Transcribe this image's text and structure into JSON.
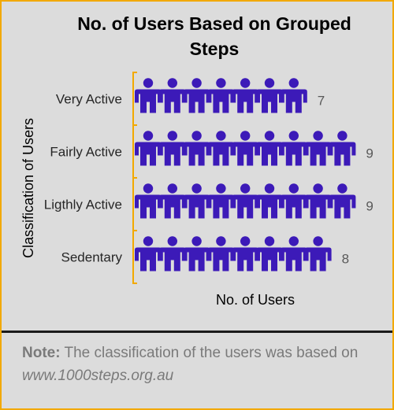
{
  "chart_data": {
    "type": "pictograph",
    "title": "No. of Users Based on Grouped Steps",
    "xlabel": "No. of Users",
    "ylabel": "Classification of Users",
    "categories": [
      "Very Active",
      "Fairly Active",
      "Ligthly Active",
      "Sedentary"
    ],
    "values": [
      7,
      9,
      9,
      8
    ],
    "icon": "person-icon",
    "icon_color": "#3c1ab8",
    "axis_color": "#f2a900",
    "value_label_color": "#595959"
  },
  "note": {
    "label": "Note:",
    "text": " The classification of the users was based on ",
    "link": "www.1000steps.org.au"
  },
  "colors": {
    "background": "#dcdcdc",
    "border": "#f2a900",
    "divider": "#1a1a1a",
    "note_text": "#7a7a7a"
  }
}
